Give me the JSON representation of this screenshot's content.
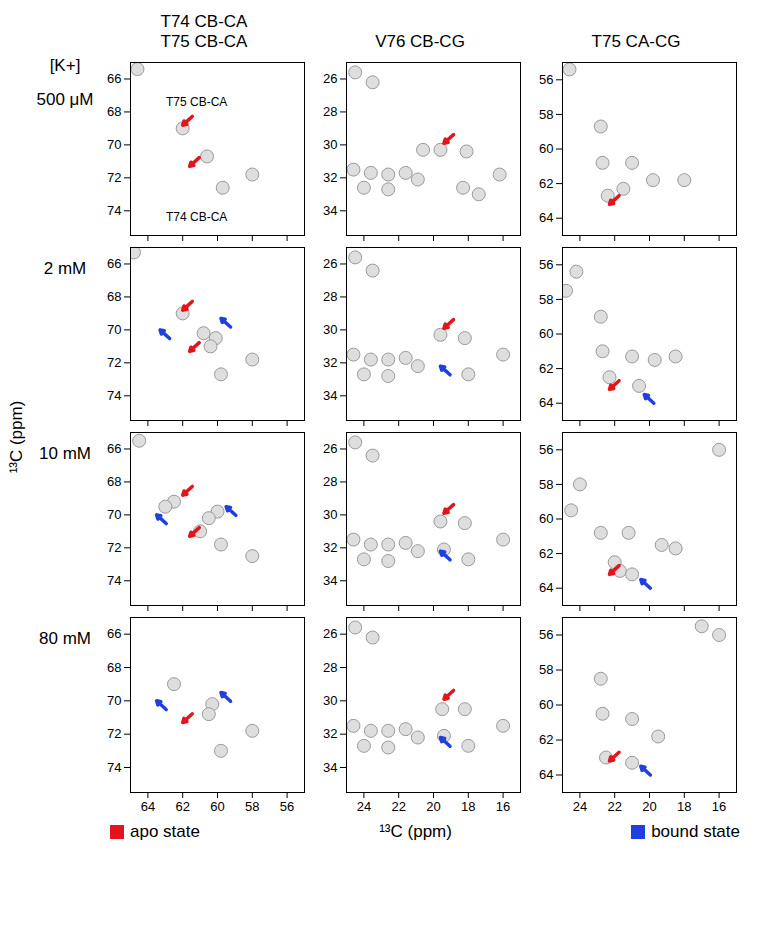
{
  "figure": {
    "row_header": "[K+]",
    "rows": [
      "500 μM",
      "2 mM",
      "10 mM",
      "80 mM"
    ],
    "columns": [
      "T74 CB-CA\nT75 CB-CA",
      "V76 CB-CG",
      "T75 CA-CG"
    ],
    "x_label": "¹³C (ppm)",
    "y_label": "¹³C (ppm)",
    "legend": [
      {
        "name": "apo state",
        "color": "#e3141b"
      },
      {
        "name": "bound state",
        "color": "#1f3fe0"
      }
    ]
  },
  "chart_data": [
    {
      "type": "scatter",
      "tick_labels": "y",
      "xlim": [
        65,
        55
      ],
      "ylim": [
        65,
        75.5
      ],
      "xticks": [
        64,
        62,
        60,
        58,
        56
      ],
      "yticks": [
        66,
        68,
        70,
        72,
        74
      ],
      "peaks": [
        [
          64.6,
          65.4
        ],
        [
          62.0,
          69.0
        ],
        [
          60.6,
          70.7
        ],
        [
          59.7,
          72.6
        ],
        [
          58.0,
          71.8
        ]
      ],
      "annotations": [
        {
          "text": "T75 CB-CA",
          "x": 61.2,
          "y": 67.4
        },
        {
          "text": "T74 CB-CA",
          "x": 61.2,
          "y": 74.4
        }
      ],
      "series": [
        {
          "name": "apo state",
          "points": [
            [
              62.0,
              68.8
            ],
            [
              61.6,
              71.3
            ]
          ]
        }
      ]
    },
    {
      "type": "scatter",
      "tick_labels": "y",
      "xlim": [
        25,
        15
      ],
      "ylim": [
        25,
        35.5
      ],
      "xticks": [
        24,
        22,
        20,
        18,
        16
      ],
      "yticks": [
        26,
        28,
        30,
        32,
        34
      ],
      "peaks": [
        [
          24.5,
          25.6
        ],
        [
          23.5,
          26.2
        ],
        [
          24.6,
          31.5
        ],
        [
          23.6,
          31.7
        ],
        [
          22.6,
          31.8
        ],
        [
          21.6,
          31.7
        ],
        [
          20.9,
          32.1
        ],
        [
          24.0,
          32.6
        ],
        [
          22.6,
          32.7
        ],
        [
          20.6,
          30.3
        ],
        [
          19.6,
          30.3
        ],
        [
          18.1,
          30.4
        ],
        [
          18.3,
          32.6
        ],
        [
          17.4,
          33.0
        ],
        [
          16.2,
          31.8
        ]
      ],
      "series": [
        {
          "name": "apo state",
          "points": [
            [
              19.4,
              29.9
            ]
          ]
        }
      ]
    },
    {
      "type": "scatter",
      "tick_labels": "y",
      "xlim": [
        25,
        15
      ],
      "ylim": [
        55,
        65
      ],
      "xticks": [
        24,
        22,
        20,
        18,
        16
      ],
      "yticks": [
        56,
        58,
        60,
        62,
        64
      ],
      "peaks": [
        [
          24.6,
          55.4
        ],
        [
          22.8,
          58.7
        ],
        [
          22.7,
          60.8
        ],
        [
          21.0,
          60.8
        ],
        [
          19.8,
          61.8
        ],
        [
          18.0,
          61.8
        ],
        [
          21.5,
          62.3
        ],
        [
          22.4,
          62.7
        ]
      ],
      "series": [
        {
          "name": "apo state",
          "points": [
            [
              22.3,
              63.2
            ]
          ]
        }
      ]
    },
    {
      "type": "scatter",
      "tick_labels": "y",
      "xlim": [
        65,
        55
      ],
      "ylim": [
        65,
        75.5
      ],
      "xticks": [
        64,
        62,
        60,
        58,
        56
      ],
      "yticks": [
        66,
        68,
        70,
        72,
        74
      ],
      "peaks": [
        [
          64.8,
          65.3
        ],
        [
          62.0,
          69.0
        ],
        [
          60.8,
          70.2
        ],
        [
          60.1,
          70.5
        ],
        [
          60.4,
          71.0
        ],
        [
          59.8,
          72.7
        ],
        [
          58.0,
          71.8
        ]
      ],
      "series": [
        {
          "name": "apo state",
          "points": [
            [
              62.0,
              68.8
            ],
            [
              61.6,
              71.3
            ]
          ]
        },
        {
          "name": "bound state",
          "points": [
            [
              63.3,
              70.0
            ],
            [
              59.8,
              69.3
            ]
          ]
        }
      ]
    },
    {
      "type": "scatter",
      "tick_labels": "y",
      "xlim": [
        25,
        15
      ],
      "ylim": [
        25,
        35.5
      ],
      "xticks": [
        24,
        22,
        20,
        18,
        16
      ],
      "yticks": [
        26,
        28,
        30,
        32,
        34
      ],
      "peaks": [
        [
          24.5,
          25.6
        ],
        [
          23.5,
          26.4
        ],
        [
          24.6,
          31.5
        ],
        [
          23.6,
          31.8
        ],
        [
          22.6,
          31.8
        ],
        [
          21.6,
          31.7
        ],
        [
          20.9,
          32.2
        ],
        [
          24.0,
          32.7
        ],
        [
          22.6,
          32.8
        ],
        [
          19.6,
          30.3
        ],
        [
          18.2,
          30.5
        ],
        [
          18.0,
          32.7
        ],
        [
          16.0,
          31.5
        ]
      ],
      "series": [
        {
          "name": "apo state",
          "points": [
            [
              19.4,
              29.9
            ]
          ]
        },
        {
          "name": "bound state",
          "points": [
            [
              19.6,
              32.2
            ]
          ]
        }
      ]
    },
    {
      "type": "scatter",
      "tick_labels": "y",
      "xlim": [
        25,
        15
      ],
      "ylim": [
        55,
        65
      ],
      "xticks": [
        24,
        22,
        20,
        18,
        16
      ],
      "yticks": [
        56,
        58,
        60,
        62,
        64
      ],
      "peaks": [
        [
          24.2,
          56.4
        ],
        [
          24.8,
          57.5
        ],
        [
          22.8,
          59.0
        ],
        [
          22.7,
          61.0
        ],
        [
          21.0,
          61.3
        ],
        [
          19.7,
          61.5
        ],
        [
          18.5,
          61.3
        ],
        [
          22.3,
          62.5
        ],
        [
          20.6,
          63.0
        ]
      ],
      "series": [
        {
          "name": "apo state",
          "points": [
            [
              22.3,
              63.2
            ]
          ]
        },
        {
          "name": "bound state",
          "points": [
            [
              20.3,
              63.5
            ]
          ]
        }
      ]
    },
    {
      "type": "scatter",
      "tick_labels": "y",
      "xlim": [
        65,
        55
      ],
      "ylim": [
        65,
        75.5
      ],
      "xticks": [
        64,
        62,
        60,
        58,
        56
      ],
      "yticks": [
        66,
        68,
        70,
        72,
        74
      ],
      "peaks": [
        [
          64.5,
          65.5
        ],
        [
          62.5,
          69.2
        ],
        [
          63.0,
          69.5
        ],
        [
          60.0,
          69.8
        ],
        [
          60.5,
          70.2
        ],
        [
          61.0,
          71.0
        ],
        [
          59.8,
          71.8
        ],
        [
          58.0,
          72.5
        ]
      ],
      "series": [
        {
          "name": "apo state",
          "points": [
            [
              62.0,
              68.8
            ],
            [
              61.6,
              71.3
            ]
          ]
        },
        {
          "name": "bound state",
          "points": [
            [
              63.5,
              70.0
            ],
            [
              59.5,
              69.5
            ]
          ]
        }
      ]
    },
    {
      "type": "scatter",
      "tick_labels": "y",
      "xlim": [
        25,
        15
      ],
      "ylim": [
        25,
        35.5
      ],
      "xticks": [
        24,
        22,
        20,
        18,
        16
      ],
      "yticks": [
        26,
        28,
        30,
        32,
        34
      ],
      "peaks": [
        [
          24.5,
          25.6
        ],
        [
          23.5,
          26.4
        ],
        [
          24.6,
          31.5
        ],
        [
          23.6,
          31.8
        ],
        [
          22.6,
          31.8
        ],
        [
          21.6,
          31.7
        ],
        [
          20.9,
          32.2
        ],
        [
          24.0,
          32.7
        ],
        [
          22.6,
          32.8
        ],
        [
          19.6,
          30.4
        ],
        [
          18.2,
          30.5
        ],
        [
          19.4,
          32.1
        ],
        [
          18.0,
          32.7
        ],
        [
          16.0,
          31.5
        ]
      ],
      "series": [
        {
          "name": "apo state",
          "points": [
            [
              19.4,
              29.9
            ]
          ]
        },
        {
          "name": "bound state",
          "points": [
            [
              19.6,
              32.2
            ]
          ]
        }
      ]
    },
    {
      "type": "scatter",
      "tick_labels": "y",
      "xlim": [
        25,
        15
      ],
      "ylim": [
        55,
        65
      ],
      "xticks": [
        24,
        22,
        20,
        18,
        16
      ],
      "yticks": [
        56,
        58,
        60,
        62,
        64
      ],
      "peaks": [
        [
          16.0,
          56.0
        ],
        [
          24.0,
          58.0
        ],
        [
          24.5,
          59.5
        ],
        [
          22.8,
          60.8
        ],
        [
          21.2,
          60.8
        ],
        [
          19.3,
          61.5
        ],
        [
          18.5,
          61.7
        ],
        [
          22.0,
          62.5
        ],
        [
          21.7,
          63.0
        ],
        [
          21.0,
          63.2
        ]
      ],
      "series": [
        {
          "name": "apo state",
          "points": [
            [
              22.3,
              63.2
            ]
          ]
        },
        {
          "name": "bound state",
          "points": [
            [
              20.5,
              63.5
            ]
          ]
        }
      ]
    },
    {
      "type": "scatter",
      "xlim": [
        65,
        55
      ],
      "ylim": [
        65,
        75.5
      ],
      "xticks": [
        64,
        62,
        60,
        58,
        56
      ],
      "yticks": [
        66,
        68,
        70,
        72,
        74
      ],
      "peaks": [
        [
          62.5,
          69.0
        ],
        [
          60.3,
          70.2
        ],
        [
          60.5,
          70.8
        ],
        [
          58.0,
          71.8
        ],
        [
          59.8,
          73.0
        ]
      ],
      "series": [
        {
          "name": "apo state",
          "points": [
            [
              62.0,
              71.3
            ]
          ]
        },
        {
          "name": "bound state",
          "points": [
            [
              63.5,
              70.0
            ],
            [
              59.8,
              69.5
            ]
          ]
        }
      ]
    },
    {
      "type": "scatter",
      "xlim": [
        25,
        15
      ],
      "ylim": [
        25,
        35.5
      ],
      "xticks": [
        24,
        22,
        20,
        18,
        16
      ],
      "yticks": [
        26,
        28,
        30,
        32,
        34
      ],
      "peaks": [
        [
          24.5,
          25.6
        ],
        [
          23.5,
          26.2
        ],
        [
          24.6,
          31.5
        ],
        [
          23.6,
          31.8
        ],
        [
          22.6,
          31.8
        ],
        [
          21.6,
          31.7
        ],
        [
          20.9,
          32.2
        ],
        [
          24.0,
          32.7
        ],
        [
          22.6,
          32.8
        ],
        [
          19.5,
          30.5
        ],
        [
          18.2,
          30.5
        ],
        [
          19.4,
          32.1
        ],
        [
          18.0,
          32.7
        ],
        [
          16.0,
          31.5
        ]
      ],
      "series": [
        {
          "name": "apo state",
          "points": [
            [
              19.4,
              29.9
            ]
          ]
        },
        {
          "name": "bound state",
          "points": [
            [
              19.6,
              32.2
            ]
          ]
        }
      ]
    },
    {
      "type": "scatter",
      "xlim": [
        25,
        15
      ],
      "ylim": [
        55,
        65
      ],
      "xticks": [
        24,
        22,
        20,
        18,
        16
      ],
      "yticks": [
        56,
        58,
        60,
        62,
        64
      ],
      "peaks": [
        [
          17.0,
          55.5
        ],
        [
          16.0,
          56.0
        ],
        [
          22.8,
          58.5
        ],
        [
          22.7,
          60.5
        ],
        [
          21.0,
          60.8
        ],
        [
          19.5,
          61.8
        ],
        [
          22.5,
          63.0
        ],
        [
          21.0,
          63.3
        ]
      ],
      "series": [
        {
          "name": "apo state",
          "points": [
            [
              22.3,
              63.2
            ]
          ]
        },
        {
          "name": "bound state",
          "points": [
            [
              20.5,
              63.5
            ]
          ]
        }
      ]
    }
  ]
}
